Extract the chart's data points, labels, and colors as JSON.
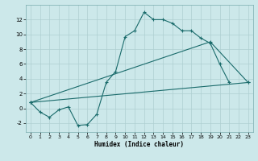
{
  "title": "",
  "xlabel": "Humidex (Indice chaleur)",
  "bg_color": "#cce8ea",
  "grid_color": "#aecfd1",
  "line_color": "#1a6b6b",
  "xlim": [
    -0.5,
    23.5
  ],
  "ylim": [
    -3.2,
    14.0
  ],
  "xticks": [
    0,
    1,
    2,
    3,
    4,
    5,
    6,
    7,
    8,
    9,
    10,
    11,
    12,
    13,
    14,
    15,
    16,
    17,
    18,
    19,
    20,
    21,
    22,
    23
  ],
  "yticks": [
    -2,
    0,
    2,
    4,
    6,
    8,
    10,
    12
  ],
  "series1_x": [
    0,
    1,
    2,
    3,
    4,
    5,
    6,
    7,
    8,
    9,
    10,
    11,
    12,
    13,
    14,
    15,
    16,
    17,
    18,
    19,
    20,
    21
  ],
  "series1_y": [
    0.8,
    -0.5,
    -1.2,
    -0.2,
    0.2,
    -2.3,
    -2.2,
    -0.8,
    3.5,
    5.0,
    9.7,
    10.5,
    13.0,
    12.0,
    12.0,
    11.5,
    10.5,
    10.5,
    9.5,
    8.8,
    6.0,
    3.5
  ],
  "series2_x": [
    0,
    19,
    23
  ],
  "series2_y": [
    0.8,
    9.0,
    3.5
  ],
  "series3_x": [
    0,
    23
  ],
  "series3_y": [
    0.8,
    3.5
  ]
}
